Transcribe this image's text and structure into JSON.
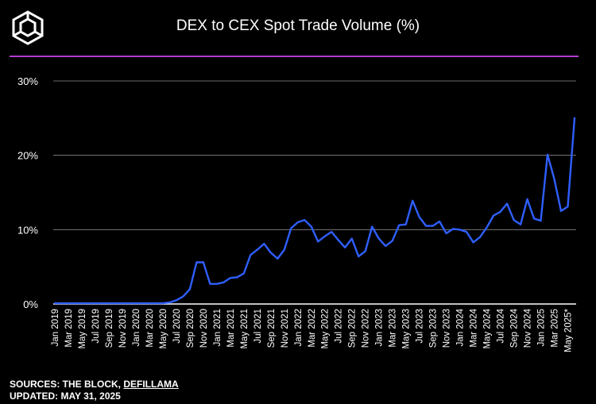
{
  "header": {
    "title": "DEX to CEX Spot Trade Volume (%)",
    "accent_color": "#b43cd2",
    "logo_icon": "cube-icon"
  },
  "footer": {
    "sources_label": "SOURCES: THE BLOCK, ",
    "sources_link": "DEFILLAMA",
    "updated": "UPDATED: MAY 31, 2025"
  },
  "chart_data": {
    "type": "line",
    "title": "DEX to CEX Spot Trade Volume (%)",
    "xlabel": "",
    "ylabel": "",
    "ylim": [
      0,
      30
    ],
    "yticks": [
      0,
      10,
      20,
      30
    ],
    "ytick_labels": [
      "0%",
      "10%",
      "20%",
      "30%"
    ],
    "grid": true,
    "line_color": "#2f5fff",
    "tick_labels": [
      "Jan 2019",
      "Mar 2019",
      "May 2019",
      "Jul 2019",
      "Sep 2019",
      "Nov 2019",
      "Jan 2020",
      "Mar 2020",
      "May 2020",
      "Jul 2020",
      "Sep 2020",
      "Nov 2020",
      "Jan 2021",
      "Mar 2021",
      "May 2021",
      "Jul 2021",
      "Sep 2021",
      "Nov 2021",
      "Jan 2022",
      "Mar 2022",
      "May 2022",
      "Jul 2022",
      "Sep 2022",
      "Nov 2022",
      "Jan 2023",
      "Mar 2023",
      "May 2023",
      "Jul 2023",
      "Sep 2023",
      "Nov 2023",
      "Jan 2024",
      "Mar 2024",
      "May 2024",
      "Jul 2024",
      "Sep 2024",
      "Nov 2024",
      "Jan 2025",
      "Mar 2025",
      "May 2025*"
    ],
    "series": [
      {
        "name": "DEX to CEX Spot Trade Volume (%)",
        "values": [
          0.1,
          0.1,
          0.1,
          0.1,
          0.1,
          0.1,
          0.1,
          0.1,
          0.1,
          0.1,
          0.1,
          0.1,
          0.1,
          0.1,
          0.1,
          0.1,
          0.1,
          0.2,
          0.5,
          1.0,
          2.0,
          5.6,
          5.6,
          2.7,
          2.7,
          2.9,
          3.5,
          3.6,
          4.1,
          6.6,
          7.3,
          8.1,
          6.9,
          6.1,
          7.3,
          10.2,
          11.0,
          11.3,
          10.4,
          8.4,
          9.1,
          9.7,
          8.6,
          7.6,
          8.8,
          6.4,
          7.1,
          10.4,
          8.8,
          7.8,
          8.5,
          10.6,
          10.7,
          13.9,
          11.7,
          10.5,
          10.5,
          11.1,
          9.5,
          10.1,
          10.0,
          9.7,
          8.3,
          9.0,
          10.3,
          11.9,
          12.4,
          13.5,
          11.3,
          10.7,
          14.1,
          11.5,
          11.2,
          20.1,
          16.8,
          12.5,
          13.1,
          25.0
        ]
      }
    ]
  }
}
